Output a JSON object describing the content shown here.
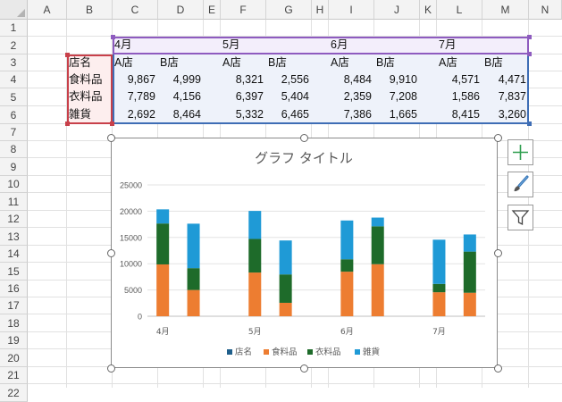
{
  "columns": [
    "A",
    "B",
    "C",
    "D",
    "E",
    "F",
    "G",
    "H",
    "I",
    "J",
    "K",
    "L",
    "M",
    "N"
  ],
  "rows": [
    "1",
    "2",
    "3",
    "4",
    "5",
    "6",
    "7",
    "8",
    "9",
    "10",
    "11",
    "12",
    "13",
    "14",
    "15",
    "16",
    "17",
    "18",
    "19",
    "20",
    "21",
    "22"
  ],
  "table": {
    "months": [
      "4月",
      "5月",
      "6月",
      "7月"
    ],
    "store_header": "店名",
    "stores": [
      "A店",
      "B店"
    ],
    "items": [
      {
        "label": "食料品",
        "values": [
          "9,867",
          "4,999",
          "8,321",
          "2,556",
          "8,484",
          "9,910",
          "4,571",
          "4,471"
        ]
      },
      {
        "label": "衣料品",
        "values": [
          "7,789",
          "4,156",
          "6,397",
          "5,404",
          "2,359",
          "7,208",
          "1,586",
          "7,837"
        ]
      },
      {
        "label": "雑貨",
        "values": [
          "2,692",
          "8,464",
          "5,332",
          "6,465",
          "7,386",
          "1,665",
          "8,415",
          "3,260"
        ]
      }
    ]
  },
  "colors": {
    "food": "#ED7D31",
    "clothing": "#1E6B2A",
    "goods": "#1F9AD6",
    "store": "#1F5F8B"
  },
  "chart_data": {
    "type": "bar",
    "stacked": true,
    "title": "グラフ タイトル",
    "categories": [
      "4月 A店",
      "4月 B店",
      "5月 A店",
      "5月 B店",
      "6月 A店",
      "6月 B店",
      "7月 A店",
      "7月 B店"
    ],
    "group_labels": [
      "4月",
      "5月",
      "6月",
      "7月"
    ],
    "series": [
      {
        "name": "店名",
        "values": [
          0,
          0,
          0,
          0,
          0,
          0,
          0,
          0
        ]
      },
      {
        "name": "食料品",
        "values": [
          9867,
          4999,
          8321,
          2556,
          8484,
          9910,
          4571,
          4471
        ]
      },
      {
        "name": "衣料品",
        "values": [
          7789,
          4156,
          6397,
          5404,
          2359,
          7208,
          1586,
          7837
        ]
      },
      {
        "name": "雑貨",
        "values": [
          2692,
          8464,
          5332,
          6465,
          7386,
          1665,
          8415,
          3260
        ]
      }
    ],
    "yticks": [
      "0",
      "5000",
      "10000",
      "15000",
      "20000",
      "25000"
    ],
    "ylim": [
      0,
      25000
    ],
    "legend": "bottom",
    "grid": true
  }
}
